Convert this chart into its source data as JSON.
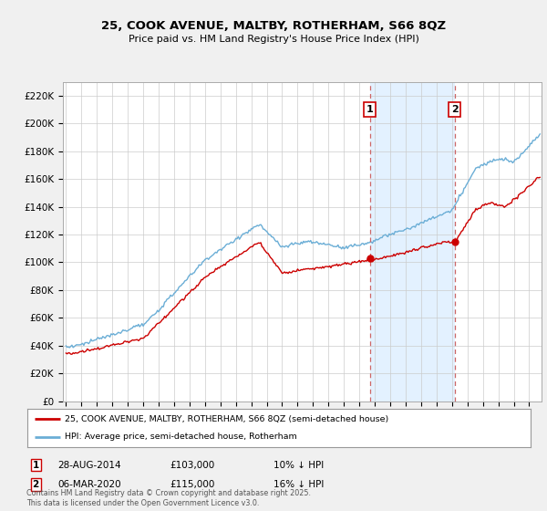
{
  "title_line1": "25, COOK AVENUE, MALTBY, ROTHERHAM, S66 8QZ",
  "title_line2": "Price paid vs. HM Land Registry's House Price Index (HPI)",
  "ylim": [
    0,
    230000
  ],
  "ytick_vals": [
    0,
    20000,
    40000,
    60000,
    80000,
    100000,
    120000,
    140000,
    160000,
    180000,
    200000,
    220000
  ],
  "ytick_labels": [
    "£0",
    "£20K",
    "£40K",
    "£60K",
    "£80K",
    "£100K",
    "£120K",
    "£140K",
    "£160K",
    "£180K",
    "£200K",
    "£220K"
  ],
  "hpi_color": "#6baed6",
  "price_color": "#cc0000",
  "shade_color": "#ddeeff",
  "ann1_x": 2014.67,
  "ann1_price": 103000,
  "ann1_hpi": 114000,
  "ann2_x": 2020.17,
  "ann2_price": 115000,
  "ann2_hpi": 137000,
  "ann1_text_date": "28-AUG-2014",
  "ann1_text_price": "£103,000",
  "ann1_text_pct": "10% ↓ HPI",
  "ann2_text_date": "06-MAR-2020",
  "ann2_text_price": "£115,000",
  "ann2_text_pct": "16% ↓ HPI",
  "legend_label_price": "25, COOK AVENUE, MALTBY, ROTHERHAM, S66 8QZ (semi-detached house)",
  "legend_label_hpi": "HPI: Average price, semi-detached house, Rotherham",
  "footnote": "Contains HM Land Registry data © Crown copyright and database right 2025.\nThis data is licensed under the Open Government Licence v3.0.",
  "background_color": "#f0f0f0",
  "plot_bg_color": "#ffffff",
  "xlim_left": 1994.8,
  "xlim_right": 2025.8
}
